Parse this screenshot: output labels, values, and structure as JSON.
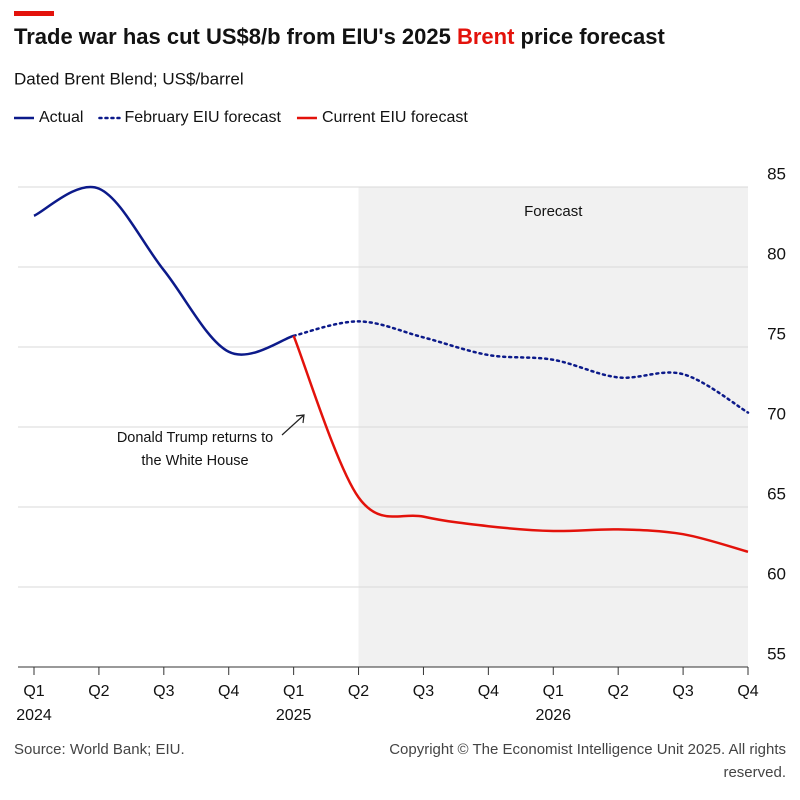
{
  "chart_data": {
    "type": "line",
    "title_parts": [
      "Trade war has cut US$8/b from EIU's 2025 ",
      "Brent",
      " price forecast"
    ],
    "title_highlight_color": "#e3120b",
    "subtitle": "Dated Brent Blend; US$/barrel",
    "categories": [
      "Q1",
      "Q2",
      "Q3",
      "Q4",
      "Q1",
      "Q2",
      "Q3",
      "Q4",
      "Q1",
      "Q2",
      "Q3",
      "Q4"
    ],
    "years": [
      "2024",
      null,
      null,
      null,
      "2025",
      null,
      null,
      null,
      "2026",
      null,
      null,
      null
    ],
    "series": [
      {
        "name": "Actual",
        "color": "#0c1a8a",
        "style": "solid",
        "values": [
          83.2,
          84.9,
          79.8,
          74.7,
          75.7,
          null,
          null,
          null,
          null,
          null,
          null,
          null
        ]
      },
      {
        "name": "February EIU forecast",
        "color": "#0c1a8a",
        "style": "dotted",
        "values": [
          null,
          null,
          null,
          null,
          75.7,
          76.6,
          75.6,
          74.5,
          74.2,
          73.1,
          73.3,
          70.9
        ]
      },
      {
        "name": "Current EIU forecast",
        "color": "#e3120b",
        "style": "solid",
        "values": [
          null,
          null,
          null,
          null,
          75.7,
          65.6,
          64.4,
          63.8,
          63.5,
          63.6,
          63.3,
          62.2
        ]
      }
    ],
    "ylim": [
      55,
      85
    ],
    "yticks": [
      55,
      60,
      65,
      70,
      75,
      80,
      85
    ],
    "grid": true,
    "forecast_region": {
      "start": 5,
      "end": 11,
      "label": "Forecast"
    },
    "annotation": [
      "Donald Trump returns to",
      "the White House"
    ],
    "source": "Source: World Bank; EIU.",
    "copyright": "Copyright © The Economist Intelligence Unit 2025. All rights reserved."
  }
}
